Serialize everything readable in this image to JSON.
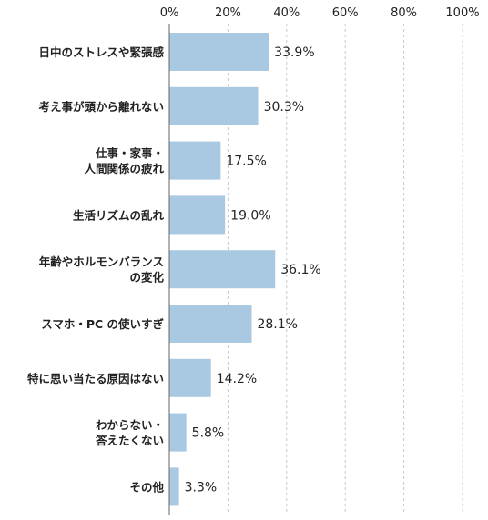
{
  "chart_data": {
    "type": "bar",
    "orientation": "horizontal",
    "xlim": [
      0,
      100
    ],
    "x_ticks": [
      "0%",
      "20%",
      "40%",
      "60%",
      "80%",
      "100%"
    ],
    "grid": true,
    "bar_color": "#a9c9e2",
    "categories": [
      [
        "日中のストレスや緊張感"
      ],
      [
        "考え事が頭から離れない"
      ],
      [
        "仕事・家事・",
        "人間関係の疲れ"
      ],
      [
        "生活リズムの乱れ"
      ],
      [
        "年齢やホルモンバランス",
        "の変化"
      ],
      [
        "スマホ・PC の使いすぎ"
      ],
      [
        "特に思い当たる原因はない"
      ],
      [
        "わからない・",
        "答えたくない"
      ],
      [
        "その他"
      ]
    ],
    "values": [
      33.9,
      30.3,
      17.5,
      19.0,
      36.1,
      28.1,
      14.2,
      5.8,
      3.3
    ],
    "value_labels": [
      "33.9%",
      "30.3%",
      "17.5%",
      "19.0%",
      "36.1%",
      "28.1%",
      "14.2%",
      "5.8%",
      "3.3%"
    ]
  }
}
